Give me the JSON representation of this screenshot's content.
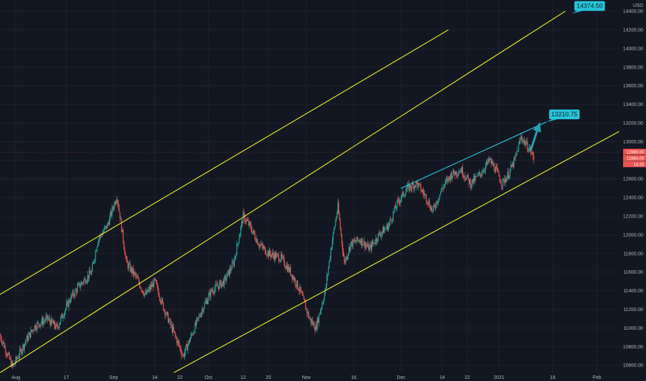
{
  "colors": {
    "background": "#131722",
    "grid": "#1e222d",
    "axis_text": "#b2b5be",
    "up": "#26a69a",
    "down": "#ef5350",
    "channel": "#e6e62a",
    "trendline": "#26c6da",
    "arrow": "#26a0b4"
  },
  "chart_data": {
    "type": "candlestick",
    "currency_label": "USD",
    "y_ticks": [
      10600,
      10800,
      11000,
      11200,
      11400,
      11600,
      11800,
      12000,
      12200,
      12400,
      12600,
      12800,
      13000,
      13200,
      13400,
      13600,
      13800,
      14000,
      14200,
      14400
    ],
    "y_tick_labels": [
      "10600.00",
      "10800.00",
      "11000.00",
      "11200.00",
      "11400.00",
      "11600.00",
      "11800.00",
      "12000.00",
      "12200.00",
      "12400.00",
      "12600.00",
      "12800.00",
      "13000.00",
      "13200.00",
      "13400.00",
      "13600.00",
      "13800.00",
      "14000.00",
      "14200.00",
      "14400.00"
    ],
    "ylim": [
      10520,
      14520
    ],
    "x_start": "2020-07-27",
    "x_end": "2021-02-08",
    "x_tick_labels": [
      {
        "date": "2020-08-01",
        "label": "Aug"
      },
      {
        "date": "2020-08-17",
        "label": "17"
      },
      {
        "date": "2020-09-01",
        "label": "Sep"
      },
      {
        "date": "2020-09-14",
        "label": "14"
      },
      {
        "date": "2020-09-22",
        "label": "22"
      },
      {
        "date": "2020-10-01",
        "label": "Oct"
      },
      {
        "date": "2020-10-12",
        "label": "12"
      },
      {
        "date": "2020-10-20",
        "label": "20"
      },
      {
        "date": "2020-11-01",
        "label": "Nov"
      },
      {
        "date": "2020-11-16",
        "label": "16"
      },
      {
        "date": "2020-12-01",
        "label": "Dec"
      },
      {
        "date": "2020-12-14",
        "label": "14"
      },
      {
        "date": "2020-12-22",
        "label": "22"
      },
      {
        "date": "2021-01-01",
        "label": "2021"
      },
      {
        "date": "2021-01-18",
        "label": "18"
      },
      {
        "date": "2021-02-01",
        "label": "Feb"
      }
    ],
    "price_path": [
      [
        "2020-07-27",
        10920
      ],
      [
        "2020-07-31",
        10580
      ],
      [
        "2020-08-04",
        10850
      ],
      [
        "2020-08-07",
        11020
      ],
      [
        "2020-08-11",
        11100
      ],
      [
        "2020-08-14",
        11000
      ],
      [
        "2020-08-18",
        11300
      ],
      [
        "2020-08-21",
        11450
      ],
      [
        "2020-08-25",
        11600
      ],
      [
        "2020-08-27",
        11950
      ],
      [
        "2020-08-30",
        12100
      ],
      [
        "2020-09-02",
        12420
      ],
      [
        "2020-09-03",
        12200
      ],
      [
        "2020-09-05",
        11700
      ],
      [
        "2020-09-08",
        11550
      ],
      [
        "2020-09-11",
        11350
      ],
      [
        "2020-09-14",
        11500
      ],
      [
        "2020-09-17",
        11200
      ],
      [
        "2020-09-20",
        10950
      ],
      [
        "2020-09-23",
        10700
      ],
      [
        "2020-09-26",
        10950
      ],
      [
        "2020-09-29",
        11200
      ],
      [
        "2020-10-02",
        11400
      ],
      [
        "2020-10-06",
        11500
      ],
      [
        "2020-10-09",
        11700
      ],
      [
        "2020-10-12",
        12200
      ],
      [
        "2020-10-14",
        12100
      ],
      [
        "2020-10-17",
        11900
      ],
      [
        "2020-10-20",
        11800
      ],
      [
        "2020-10-24",
        11750
      ],
      [
        "2020-10-27",
        11600
      ],
      [
        "2020-10-30",
        11400
      ],
      [
        "2020-11-02",
        11100
      ],
      [
        "2020-11-04",
        11000
      ],
      [
        "2020-11-07",
        11400
      ],
      [
        "2020-11-09",
        11900
      ],
      [
        "2020-11-11",
        12300
      ],
      [
        "2020-11-13",
        11700
      ],
      [
        "2020-11-15",
        11900
      ],
      [
        "2020-11-18",
        11950
      ],
      [
        "2020-11-21",
        11850
      ],
      [
        "2020-11-24",
        12000
      ],
      [
        "2020-11-27",
        12100
      ],
      [
        "2020-11-30",
        12350
      ],
      [
        "2020-12-03",
        12500
      ],
      [
        "2020-12-06",
        12550
      ],
      [
        "2020-12-09",
        12400
      ],
      [
        "2020-12-11",
        12250
      ],
      [
        "2020-12-14",
        12500
      ],
      [
        "2020-12-17",
        12650
      ],
      [
        "2020-12-20",
        12700
      ],
      [
        "2020-12-23",
        12550
      ],
      [
        "2020-12-26",
        12650
      ],
      [
        "2020-12-29",
        12800
      ],
      [
        "2020-12-31",
        12700
      ],
      [
        "2021-01-02",
        12550
      ],
      [
        "2021-01-04",
        12650
      ],
      [
        "2021-01-06",
        12800
      ],
      [
        "2021-01-08",
        13050
      ],
      [
        "2021-01-09",
        13000
      ],
      [
        "2021-01-11",
        12900
      ],
      [
        "2021-01-12",
        12820
      ]
    ],
    "channel_lines": [
      {
        "name": "upper-channel",
        "p1": [
          "2020-07-13",
          11080
        ],
        "p2": [
          "2020-12-16",
          14200
        ]
      },
      {
        "name": "middle-channel",
        "p1": [
          "2020-07-27",
          10520
        ],
        "p2": [
          "2021-01-22",
          14400
        ]
      },
      {
        "name": "lower-channel",
        "p1": [
          "2020-09-20",
          10520
        ],
        "p2": [
          "2021-02-13",
          13200
        ]
      }
    ],
    "trendline": {
      "p1": [
        "2020-12-01",
        12500
      ],
      "p2": [
        "2021-01-16",
        13210.75
      ]
    },
    "arrow": {
      "from": [
        "2021-01-11",
        12900
      ],
      "to": [
        "2021-01-14",
        13210.75
      ]
    },
    "annotations": [
      {
        "name": "annotation-13210",
        "label": "13210.75",
        "at": [
          "2021-01-16",
          13210.75
        ]
      },
      {
        "name": "annotation-14374",
        "label": "14374.50",
        "at": [
          "2021-01-24",
          14374.5
        ]
      }
    ],
    "last_price_labels": [
      "12886.00",
      "12884.00",
      "18:25"
    ],
    "last_price": 12886
  }
}
